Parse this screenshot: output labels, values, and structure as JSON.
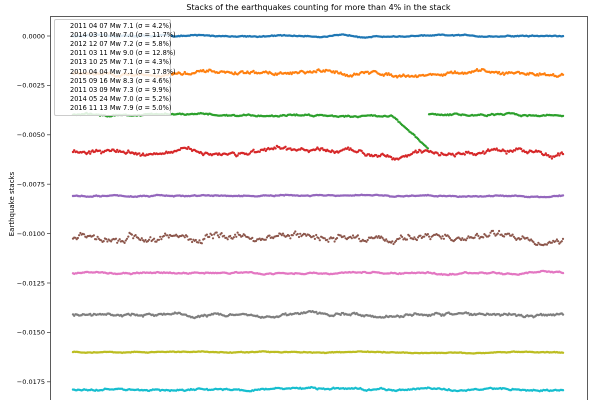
{
  "chart_data": {
    "type": "scatter",
    "title": "Stacks of the earthquakes counting for more than 4% in the stack",
    "xlabel": "",
    "ylabel": "Earthquake stacks",
    "yticks": [
      "0.0000",
      "−0.0025",
      "−0.0050",
      "−0.0075",
      "−0.0100",
      "−0.0125",
      "−0.0150",
      "−0.0175"
    ],
    "ytick_values": [
      0.0,
      -0.0025,
      -0.005,
      -0.0075,
      -0.01,
      -0.0125,
      -0.015,
      -0.0175
    ],
    "ylim": [
      -0.0183,
      0.001
    ],
    "legend_position": "upper left",
    "grid": false,
    "series": [
      {
        "name": "2011 04 07 Mw 7.1 (σ = 4.2%)",
        "color": "#1f77b4",
        "level": 0.0,
        "noise": 4e-05
      },
      {
        "name": "2014 03 10 Mw 7.0 (σ = 11.7%)",
        "color": "#ff7f0e",
        "level": -0.0019,
        "noise": 0.00012
      },
      {
        "name": "2012 12 07 Mw 7.2 (σ = 5.8%)",
        "color": "#2ca02c",
        "level": -0.004,
        "noise": 6e-05
      },
      {
        "name": "2011 03 11 Mw 9.0 (σ = 12.8%)",
        "color": "#d62728",
        "level": -0.0059,
        "noise": 0.00015
      },
      {
        "name": "2013 10 25 Mw 7.1 (σ = 4.3%)",
        "color": "#9467bd",
        "level": -0.0081,
        "noise": 4e-05
      },
      {
        "name": "2010 04 04 Mw 7.1 (σ = 17.8%)",
        "color": "#8c564b",
        "level": -0.0102,
        "noise": 0.00025
      },
      {
        "name": "2015 09 16 Mw 8.3 (σ = 4.6%)",
        "color": "#e377c2",
        "level": -0.012,
        "noise": 5e-05
      },
      {
        "name": "2011 03 09 Mw 7.3 (σ = 9.9%)",
        "color": "#7f7f7f",
        "level": -0.0141,
        "noise": 0.0001
      },
      {
        "name": "2014 05 24 Mw 7.0 (σ = 5.2%)",
        "color": "#bcbd22",
        "level": -0.016,
        "noise": 3e-05
      },
      {
        "name": "2016 11 13 Mw 7.9 (σ = 5.0%)",
        "color": "#17becf",
        "level": -0.0179,
        "noise": 6e-05
      }
    ],
    "n_points": 400
  }
}
